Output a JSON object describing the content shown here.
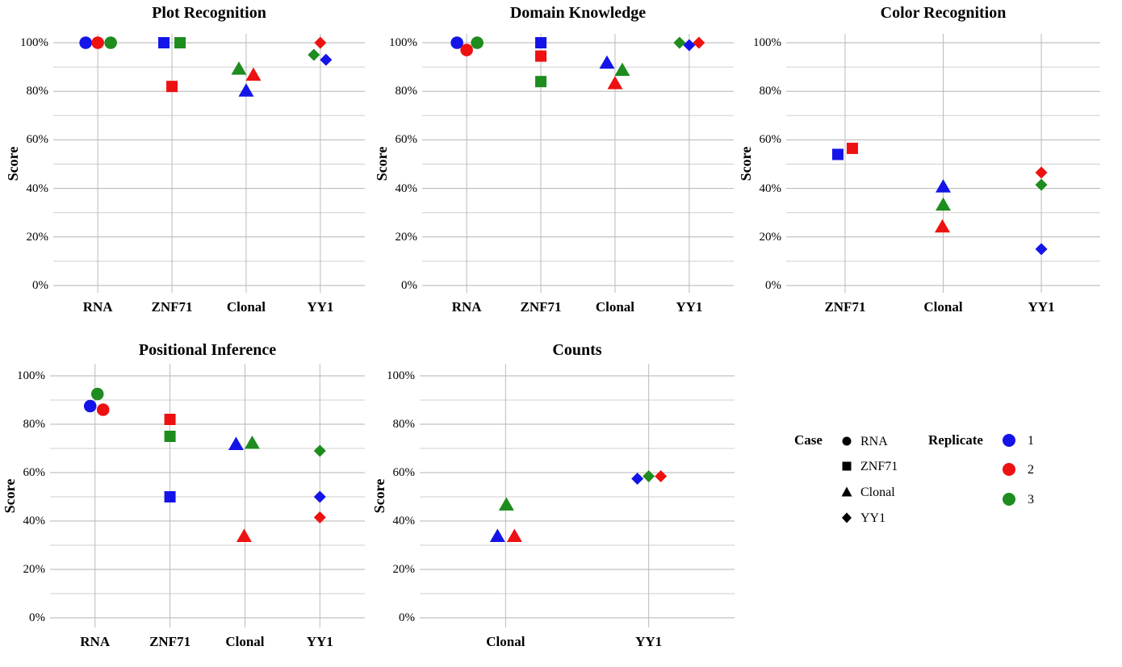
{
  "styles": {
    "background": "#ffffff",
    "text_color": "#000000",
    "grid_minor_color": "#cfcfcf",
    "grid_major_color": "#b3b3b3",
    "grid_vertical_color": "#bbbbbb",
    "case_glyph_color": "#000000",
    "replicate_colors": {
      "1": "#1414e8",
      "2": "#ee1111",
      "3": "#1e8c1e"
    }
  },
  "case_shapes": {
    "RNA": "circle",
    "ZNF71": "square",
    "Clonal": "triangle",
    "YY1": "diamond"
  },
  "legend": {
    "case_title": "Case",
    "case_items": [
      {
        "shape": "circle",
        "label": "RNA"
      },
      {
        "shape": "square",
        "label": "ZNF71"
      },
      {
        "shape": "triangle",
        "label": "Clonal"
      },
      {
        "shape": "diamond",
        "label": "YY1"
      }
    ],
    "replicate_title": "Replicate",
    "replicate_items": [
      {
        "replicate": "1",
        "label": "1"
      },
      {
        "replicate": "2",
        "label": "2"
      },
      {
        "replicate": "3",
        "label": "3"
      }
    ]
  },
  "chart_data": [
    {
      "type": "scatter",
      "title": "Plot Recognition",
      "ylabel": "Score",
      "x_categories": [
        "RNA",
        "ZNF71",
        "Clonal",
        "YY1"
      ],
      "y_tick_labels": [
        "0%",
        "20%",
        "40%",
        "60%",
        "80%",
        "100%"
      ],
      "ylim": [
        0,
        100
      ],
      "grid": "on",
      "points": [
        {
          "case": "RNA",
          "replicate": "1",
          "value": 100,
          "dx": -15
        },
        {
          "case": "RNA",
          "replicate": "2",
          "value": 100,
          "dx": 0
        },
        {
          "case": "RNA",
          "replicate": "3",
          "value": 100,
          "dx": 16
        },
        {
          "case": "ZNF71",
          "replicate": "1",
          "value": 100,
          "dx": -10
        },
        {
          "case": "ZNF71",
          "replicate": "3",
          "value": 100,
          "dx": 10
        },
        {
          "case": "ZNF71",
          "replicate": "2",
          "value": 82,
          "dx": 0
        },
        {
          "case": "Clonal",
          "replicate": "3",
          "value": 89.5,
          "dx": -9
        },
        {
          "case": "Clonal",
          "replicate": "2",
          "value": 87,
          "dx": 9
        },
        {
          "case": "Clonal",
          "replicate": "1",
          "value": 80.5,
          "dx": 0
        },
        {
          "case": "YY1",
          "replicate": "3",
          "value": 95,
          "dx": -8
        },
        {
          "case": "YY1",
          "replicate": "2",
          "value": 100,
          "dx": 0
        },
        {
          "case": "YY1",
          "replicate": "1",
          "value": 93,
          "dx": 7
        }
      ]
    },
    {
      "type": "scatter",
      "title": "Domain Knowledge",
      "ylabel": "Score",
      "x_categories": [
        "RNA",
        "ZNF71",
        "Clonal",
        "YY1"
      ],
      "y_tick_labels": [
        "0%",
        "20%",
        "40%",
        "60%",
        "80%",
        "100%"
      ],
      "ylim": [
        0,
        100
      ],
      "grid": "on",
      "points": [
        {
          "case": "RNA",
          "replicate": "1",
          "value": 100,
          "dx": -12
        },
        {
          "case": "RNA",
          "replicate": "2",
          "value": 97,
          "dx": 0
        },
        {
          "case": "RNA",
          "replicate": "3",
          "value": 100,
          "dx": 13
        },
        {
          "case": "ZNF71",
          "replicate": "1",
          "value": 100,
          "dx": 0
        },
        {
          "case": "ZNF71",
          "replicate": "2",
          "value": 94.5,
          "dx": 0
        },
        {
          "case": "ZNF71",
          "replicate": "3",
          "value": 84,
          "dx": 0
        },
        {
          "case": "Clonal",
          "replicate": "1",
          "value": 92,
          "dx": -10
        },
        {
          "case": "Clonal",
          "replicate": "3",
          "value": 89,
          "dx": 9
        },
        {
          "case": "Clonal",
          "replicate": "2",
          "value": 83.5,
          "dx": 0
        },
        {
          "case": "YY1",
          "replicate": "3",
          "value": 100,
          "dx": -12
        },
        {
          "case": "YY1",
          "replicate": "1",
          "value": 99,
          "dx": 0
        },
        {
          "case": "YY1",
          "replicate": "2",
          "value": 100,
          "dx": 12
        }
      ]
    },
    {
      "type": "scatter",
      "title": "Color Recognition",
      "ylabel": "Score",
      "x_categories": [
        "ZNF71",
        "Clonal",
        "YY1"
      ],
      "y_tick_labels": [
        "0%",
        "20%",
        "40%",
        "60%",
        "80%",
        "100%"
      ],
      "ylim": [
        0,
        100
      ],
      "grid": "on",
      "points": [
        {
          "case": "ZNF71",
          "replicate": "1",
          "value": 54,
          "dx": -9
        },
        {
          "case": "ZNF71",
          "replicate": "2",
          "value": 56.5,
          "dx": 9
        },
        {
          "case": "Clonal",
          "replicate": "1",
          "value": 41,
          "dx": 0
        },
        {
          "case": "Clonal",
          "replicate": "3",
          "value": 33.5,
          "dx": 0
        },
        {
          "case": "Clonal",
          "replicate": "2",
          "value": 24.5,
          "dx": -1
        },
        {
          "case": "YY1",
          "replicate": "2",
          "value": 46.5,
          "dx": 0
        },
        {
          "case": "YY1",
          "replicate": "3",
          "value": 41.5,
          "dx": 0
        },
        {
          "case": "YY1",
          "replicate": "1",
          "value": 15,
          "dx": 0
        }
      ]
    },
    {
      "type": "scatter",
      "title": "Positional Inference",
      "ylabel": "Score",
      "x_categories": [
        "RNA",
        "ZNF71",
        "Clonal",
        "YY1"
      ],
      "y_tick_labels": [
        "0%",
        "20%",
        "40%",
        "60%",
        "80%",
        "100%"
      ],
      "ylim": [
        0,
        100
      ],
      "grid": "on",
      "points": [
        {
          "case": "RNA",
          "replicate": "1",
          "value": 87.5,
          "dx": -6
        },
        {
          "case": "RNA",
          "replicate": "3",
          "value": 92.5,
          "dx": 3
        },
        {
          "case": "RNA",
          "replicate": "2",
          "value": 86,
          "dx": 10
        },
        {
          "case": "ZNF71",
          "replicate": "2",
          "value": 82,
          "dx": 0
        },
        {
          "case": "ZNF71",
          "replicate": "3",
          "value": 75,
          "dx": 0
        },
        {
          "case": "ZNF71",
          "replicate": "1",
          "value": 50,
          "dx": 0
        },
        {
          "case": "Clonal",
          "replicate": "1",
          "value": 72,
          "dx": -11
        },
        {
          "case": "Clonal",
          "replicate": "3",
          "value": 72.5,
          "dx": 9
        },
        {
          "case": "Clonal",
          "replicate": "2",
          "value": 34,
          "dx": -1
        },
        {
          "case": "YY1",
          "replicate": "3",
          "value": 69,
          "dx": 0
        },
        {
          "case": "YY1",
          "replicate": "1",
          "value": 50,
          "dx": 0
        },
        {
          "case": "YY1",
          "replicate": "2",
          "value": 41.5,
          "dx": 0
        }
      ]
    },
    {
      "type": "scatter",
      "title": "Counts",
      "ylabel": "Score",
      "x_categories": [
        "Clonal",
        "YY1"
      ],
      "y_tick_labels": [
        "0%",
        "20%",
        "40%",
        "60%",
        "80%",
        "100%"
      ],
      "ylim": [
        0,
        100
      ],
      "grid": "on",
      "points": [
        {
          "case": "Clonal",
          "replicate": "3",
          "value": 47,
          "dx": 1
        },
        {
          "case": "Clonal",
          "replicate": "1",
          "value": 34,
          "dx": -10
        },
        {
          "case": "Clonal",
          "replicate": "2",
          "value": 34,
          "dx": 11
        },
        {
          "case": "YY1",
          "replicate": "1",
          "value": 57.5,
          "dx": -14
        },
        {
          "case": "YY1",
          "replicate": "3",
          "value": 58.5,
          "dx": 0
        },
        {
          "case": "YY1",
          "replicate": "2",
          "value": 58.5,
          "dx": 15
        }
      ]
    }
  ]
}
